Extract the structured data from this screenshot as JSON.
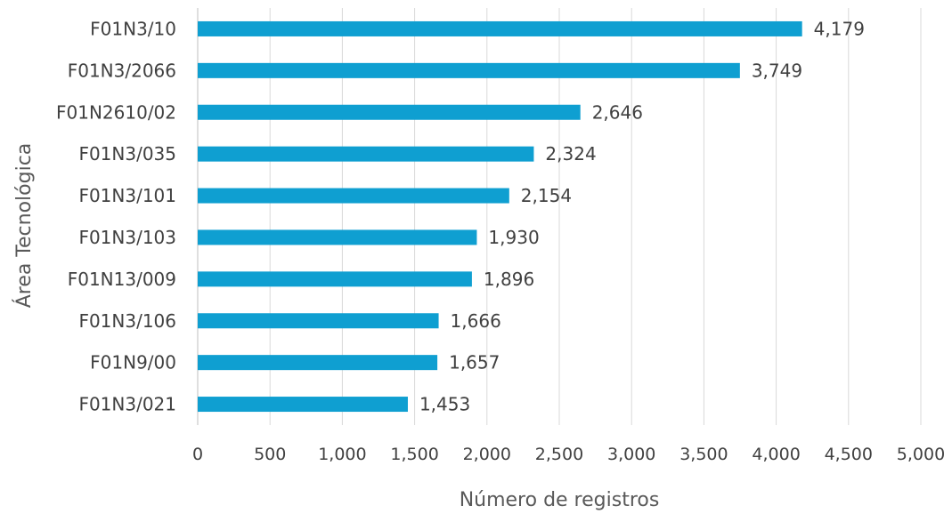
{
  "chart_data": {
    "type": "bar",
    "orientation": "horizontal",
    "categories": [
      "F01N3/10",
      "F01N3/2066",
      "F01N2610/02",
      "F01N3/035",
      "F01N3/101",
      "F01N3/103",
      "F01N13/009",
      "F01N3/106",
      "F01N9/00",
      "F01N3/021"
    ],
    "values": [
      4179,
      3749,
      2646,
      2324,
      2154,
      1930,
      1896,
      1666,
      1657,
      1453
    ],
    "data_labels": [
      "4,179",
      "3,749",
      "2,646",
      "2,324",
      "2,154",
      "1,930",
      "1,896",
      "1,666",
      "1,657",
      "1,453"
    ],
    "xlabel": "Número de registros",
    "ylabel": "Área Tecnológica",
    "xlim": [
      0,
      5000
    ],
    "x_ticks": [
      0,
      500,
      1000,
      1500,
      2000,
      2500,
      3000,
      3500,
      4000,
      4500,
      5000
    ],
    "x_tick_labels": [
      "0",
      "500",
      "1,000",
      "1,500",
      "2,000",
      "2,500",
      "3,000",
      "3,500",
      "4,000",
      "4,500",
      "5,000"
    ],
    "grid": "vertical",
    "legend": "none",
    "bar_color": "#0f9fd1"
  }
}
